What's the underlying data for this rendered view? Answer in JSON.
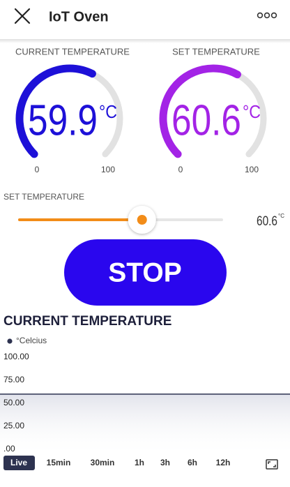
{
  "header": {
    "title": "IoT Oven"
  },
  "gauges": [
    {
      "label": "CURRENT TEMPERATURE",
      "value": 59.9,
      "unit": "°C",
      "min": 0,
      "max": 100,
      "color": "#1d10d8"
    },
    {
      "label": "SET TEMPERATURE",
      "value": 60.6,
      "unit": "°C",
      "min": 0,
      "max": 100,
      "color": "#a323e6"
    }
  ],
  "slider": {
    "label": "SET TEMPERATURE",
    "value": 60.6,
    "unit": "°C",
    "color": "#f28c18"
  },
  "button": {
    "label": "STOP",
    "color": "#2a06ee"
  },
  "chart": {
    "type": "line",
    "title": "CURRENT TEMPERATURE",
    "series": [
      {
        "name": "°Celcius",
        "color": "#2d3250",
        "values": [
          59.9,
          59.9
        ]
      }
    ],
    "ylim": [
      0,
      100
    ],
    "yticks": [
      {
        "value": 100,
        "label": "100.00"
      },
      {
        "value": 75,
        "label": "75.00"
      },
      {
        "value": 50,
        "label": "50.00"
      },
      {
        "value": 25,
        "label": "25.00"
      },
      {
        "value": 0,
        "label": ".00"
      }
    ]
  },
  "ranges": [
    "Live",
    "15min",
    "30min",
    "1h",
    "3h",
    "6h",
    "12h"
  ],
  "active_range": 0
}
